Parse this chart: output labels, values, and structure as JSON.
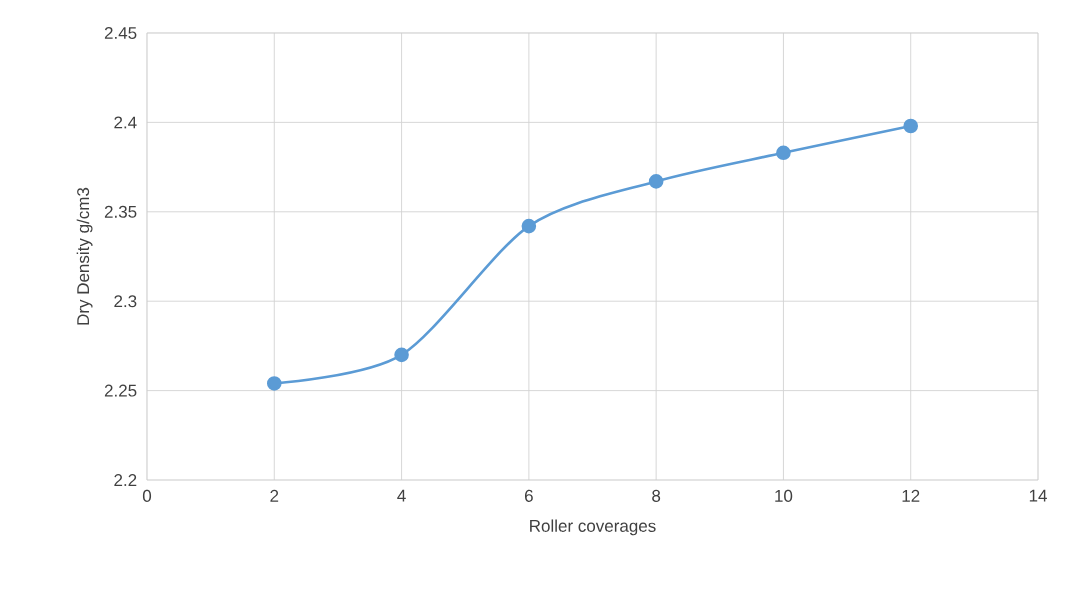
{
  "chart_data": {
    "type": "line",
    "xlabel": "Roller coverages",
    "ylabel": "Dry Density g/cm3",
    "x": [
      2,
      4,
      6,
      8,
      10,
      12
    ],
    "series": [
      {
        "color": "#5b9bd5",
        "values": [
          2.254,
          2.27,
          2.342,
          2.367,
          2.383,
          2.398
        ]
      }
    ],
    "xlim": [
      0,
      14
    ],
    "xticks": [
      0,
      2,
      4,
      6,
      8,
      10,
      12,
      14
    ],
    "ylim": [
      2.2,
      2.45
    ],
    "yticks": [
      2.2,
      2.25,
      2.3,
      2.35,
      2.4,
      2.45
    ],
    "grid": true,
    "marker": "circle",
    "line_style": "solid"
  }
}
